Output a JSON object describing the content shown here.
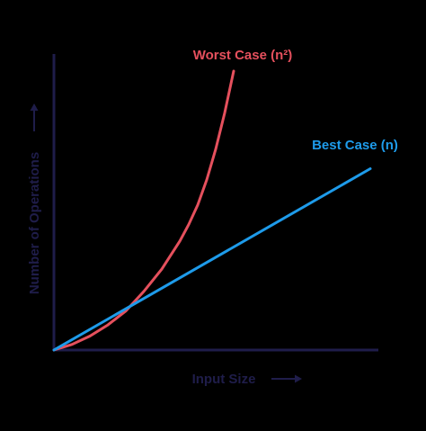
{
  "chart_data": {
    "type": "line",
    "xlabel": "Input Size",
    "ylabel": "Number of Operations",
    "grid": false,
    "tick_labels": false,
    "series": [
      {
        "name": "Worst Case (n²)",
        "color": "#e5505d",
        "x": [
          0,
          0.1,
          0.2,
          0.3,
          0.4,
          0.5,
          0.6,
          0.7,
          0.75,
          0.8,
          0.85,
          0.9,
          0.95,
          1.0
        ],
        "y": [
          0,
          0.02,
          0.05,
          0.09,
          0.14,
          0.21,
          0.29,
          0.39,
          0.45,
          0.52,
          0.61,
          0.72,
          0.85,
          1.0
        ]
      },
      {
        "name": "Best Case (n)",
        "color": "#1e9bea",
        "x": [
          0,
          1.76
        ],
        "y": [
          0,
          0.65
        ]
      }
    ],
    "xlim": [
      0,
      2
    ],
    "ylim": [
      0,
      1.1
    ]
  },
  "colors": {
    "background": "#000000",
    "axis": "#1f1d4a",
    "worst": "#e5505d",
    "best": "#1e9bea"
  }
}
